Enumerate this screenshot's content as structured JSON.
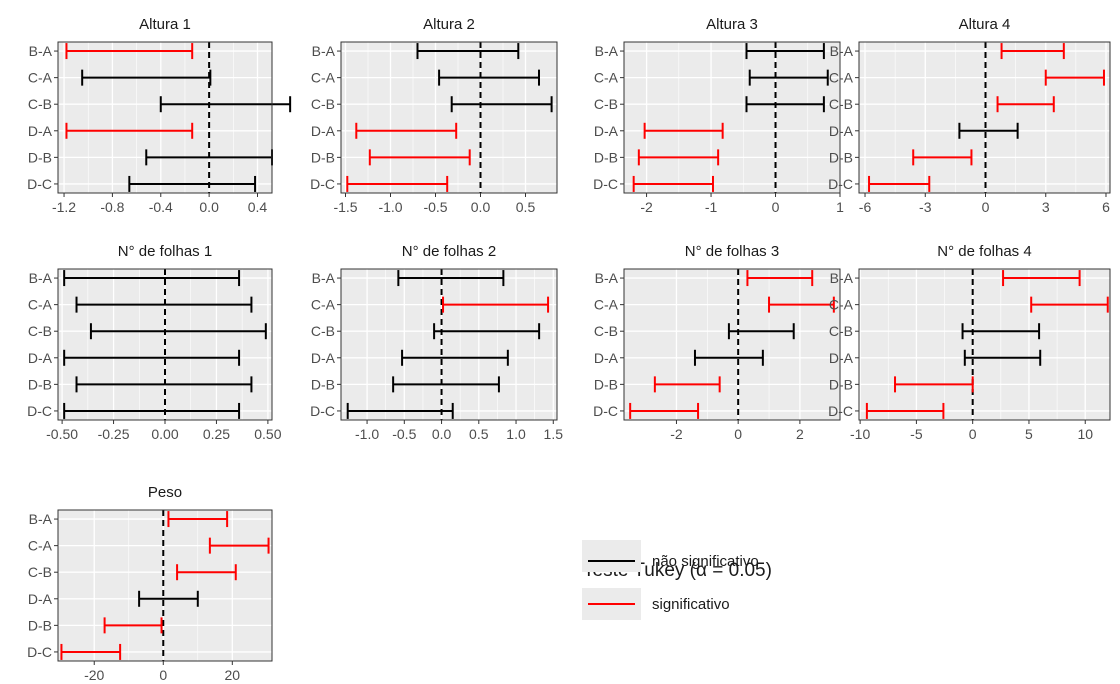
{
  "colors": {
    "significant": "#ff0000",
    "not_significant": "#000000",
    "panel_background": "#ebebeb",
    "grid": "#ffffff",
    "zero_line": "#000000"
  },
  "legend": {
    "title": "Teste Tukey (α = 0.05)",
    "items": [
      {
        "label": "não significativo",
        "color": "#000000"
      },
      {
        "label": "significativo",
        "color": "#ff0000"
      }
    ],
    "placement": "bottom-right"
  },
  "chart_data": [
    {
      "type": "interval",
      "title": "Altura 1",
      "categories": [
        "B-A",
        "C-A",
        "C-B",
        "D-A",
        "D-B",
        "D-C"
      ],
      "xlim": [
        -1.25,
        0.52
      ],
      "xticks": [
        -1.2,
        -0.8,
        -0.4,
        0.0,
        0.4
      ],
      "tick_labels": [
        "-1.2",
        "-0.8",
        "-0.4",
        "0.0",
        "0.4"
      ],
      "intervals": [
        {
          "comparison": "B-A",
          "lower": -1.18,
          "upper": -0.14,
          "significant": true
        },
        {
          "comparison": "C-A",
          "lower": -1.05,
          "upper": 0.01,
          "significant": false
        },
        {
          "comparison": "C-B",
          "lower": -0.4,
          "upper": 0.67,
          "significant": false
        },
        {
          "comparison": "D-A",
          "lower": -1.18,
          "upper": -0.14,
          "significant": true
        },
        {
          "comparison": "D-B",
          "lower": -0.52,
          "upper": 0.52,
          "significant": false
        },
        {
          "comparison": "D-C",
          "lower": -0.66,
          "upper": 0.38,
          "significant": false
        }
      ]
    },
    {
      "type": "interval",
      "title": "Altura 2",
      "categories": [
        "B-A",
        "C-A",
        "C-B",
        "D-A",
        "D-B",
        "D-C"
      ],
      "xlim": [
        -1.55,
        0.85
      ],
      "xticks": [
        -1.5,
        -1.0,
        -0.5,
        0.0,
        0.5
      ],
      "tick_labels": [
        "-1.5",
        "-1.0",
        "-0.5",
        "0.0",
        "0.5"
      ],
      "intervals": [
        {
          "comparison": "B-A",
          "lower": -0.7,
          "upper": 0.42,
          "significant": false
        },
        {
          "comparison": "C-A",
          "lower": -0.46,
          "upper": 0.65,
          "significant": false
        },
        {
          "comparison": "C-B",
          "lower": -0.32,
          "upper": 0.79,
          "significant": false
        },
        {
          "comparison": "D-A",
          "lower": -1.38,
          "upper": -0.27,
          "significant": true
        },
        {
          "comparison": "D-B",
          "lower": -1.23,
          "upper": -0.12,
          "significant": true
        },
        {
          "comparison": "D-C",
          "lower": -1.48,
          "upper": -0.37,
          "significant": true
        }
      ]
    },
    {
      "type": "interval",
      "title": "Altura 3",
      "categories": [
        "B-A",
        "C-A",
        "C-B",
        "D-A",
        "D-B",
        "D-C"
      ],
      "xlim": [
        -2.35,
        1.0
      ],
      "xticks": [
        -2,
        -1,
        0,
        1
      ],
      "tick_labels": [
        "-2",
        "-1",
        "0",
        "1"
      ],
      "intervals": [
        {
          "comparison": "B-A",
          "lower": -0.45,
          "upper": 0.75,
          "significant": false
        },
        {
          "comparison": "C-A",
          "lower": -0.4,
          "upper": 0.81,
          "significant": false
        },
        {
          "comparison": "C-B",
          "lower": -0.45,
          "upper": 0.75,
          "significant": false
        },
        {
          "comparison": "D-A",
          "lower": -2.03,
          "upper": -0.82,
          "significant": true
        },
        {
          "comparison": "D-B",
          "lower": -2.12,
          "upper": -0.89,
          "significant": true
        },
        {
          "comparison": "D-C",
          "lower": -2.2,
          "upper": -0.97,
          "significant": true
        }
      ]
    },
    {
      "type": "interval",
      "title": "Altura 4",
      "categories": [
        "B-A",
        "C-A",
        "C-B",
        "D-A",
        "D-B",
        "D-C"
      ],
      "xlim": [
        -6.3,
        6.2
      ],
      "xticks": [
        -6,
        -3,
        0,
        3,
        6
      ],
      "tick_labels": [
        "-6",
        "-3",
        "0",
        "3",
        "6"
      ],
      "intervals": [
        {
          "comparison": "B-A",
          "lower": 0.8,
          "upper": 3.9,
          "significant": true
        },
        {
          "comparison": "C-A",
          "lower": 3.0,
          "upper": 5.9,
          "significant": true
        },
        {
          "comparison": "C-B",
          "lower": 0.6,
          "upper": 3.4,
          "significant": true
        },
        {
          "comparison": "D-A",
          "lower": -1.3,
          "upper": 1.6,
          "significant": false
        },
        {
          "comparison": "D-B",
          "lower": -3.6,
          "upper": -0.7,
          "significant": true
        },
        {
          "comparison": "D-C",
          "lower": -5.8,
          "upper": -2.8,
          "significant": true
        }
      ]
    },
    {
      "type": "interval",
      "title": "N° de folhas 1",
      "categories": [
        "B-A",
        "C-A",
        "C-B",
        "D-A",
        "D-B",
        "D-C"
      ],
      "xlim": [
        -0.52,
        0.52
      ],
      "xticks": [
        -0.5,
        -0.25,
        0.0,
        0.25,
        0.5
      ],
      "tick_labels": [
        "-0.50",
        "-0.25",
        "0.00",
        "0.25",
        "0.50"
      ],
      "intervals": [
        {
          "comparison": "B-A",
          "lower": -0.49,
          "upper": 0.36,
          "significant": false
        },
        {
          "comparison": "C-A",
          "lower": -0.43,
          "upper": 0.42,
          "significant": false
        },
        {
          "comparison": "C-B",
          "lower": -0.36,
          "upper": 0.49,
          "significant": false
        },
        {
          "comparison": "D-A",
          "lower": -0.49,
          "upper": 0.36,
          "significant": false
        },
        {
          "comparison": "D-B",
          "lower": -0.43,
          "upper": 0.42,
          "significant": false
        },
        {
          "comparison": "D-C",
          "lower": -0.49,
          "upper": 0.36,
          "significant": false
        }
      ]
    },
    {
      "type": "interval",
      "title": "N° de folhas 2",
      "categories": [
        "B-A",
        "C-A",
        "C-B",
        "D-A",
        "D-B",
        "D-C"
      ],
      "xlim": [
        -1.35,
        1.55
      ],
      "xticks": [
        -1.0,
        -0.5,
        0.0,
        0.5,
        1.0,
        1.5
      ],
      "tick_labels": [
        "-1.0",
        "-0.5",
        "0.0",
        "0.5",
        "1.0",
        "1.5"
      ],
      "intervals": [
        {
          "comparison": "B-A",
          "lower": -0.58,
          "upper": 0.83,
          "significant": false
        },
        {
          "comparison": "C-A",
          "lower": 0.02,
          "upper": 1.43,
          "significant": true
        },
        {
          "comparison": "C-B",
          "lower": -0.1,
          "upper": 1.31,
          "significant": false
        },
        {
          "comparison": "D-A",
          "lower": -0.53,
          "upper": 0.89,
          "significant": false
        },
        {
          "comparison": "D-B",
          "lower": -0.65,
          "upper": 0.77,
          "significant": false
        },
        {
          "comparison": "D-C",
          "lower": -1.26,
          "upper": 0.15,
          "significant": false
        }
      ]
    },
    {
      "type": "interval",
      "title": "N° de folhas 3",
      "categories": [
        "B-A",
        "C-A",
        "C-B",
        "D-A",
        "D-B",
        "D-C"
      ],
      "xlim": [
        -3.7,
        3.3
      ],
      "xticks": [
        -2,
        0,
        2
      ],
      "tick_labels": [
        "-2",
        "0",
        "2"
      ],
      "intervals": [
        {
          "comparison": "B-A",
          "lower": 0.3,
          "upper": 2.4,
          "significant": true
        },
        {
          "comparison": "C-A",
          "lower": 1.0,
          "upper": 3.1,
          "significant": true
        },
        {
          "comparison": "C-B",
          "lower": -0.3,
          "upper": 1.8,
          "significant": false
        },
        {
          "comparison": "D-A",
          "lower": -1.4,
          "upper": 0.8,
          "significant": false
        },
        {
          "comparison": "D-B",
          "lower": -2.7,
          "upper": -0.6,
          "significant": true
        },
        {
          "comparison": "D-C",
          "lower": -3.5,
          "upper": -1.3,
          "significant": true
        }
      ]
    },
    {
      "type": "interval",
      "title": "N° de folhas 4",
      "categories": [
        "B-A",
        "C-A",
        "C-B",
        "D-A",
        "D-B",
        "D-C"
      ],
      "xlim": [
        -10.1,
        12.2
      ],
      "xticks": [
        -10,
        -5,
        0,
        5,
        10
      ],
      "tick_labels": [
        "-10",
        "-5",
        "0",
        "5",
        "10"
      ],
      "intervals": [
        {
          "comparison": "B-A",
          "lower": 2.7,
          "upper": 9.5,
          "significant": true
        },
        {
          "comparison": "C-A",
          "lower": 5.2,
          "upper": 12.0,
          "significant": true
        },
        {
          "comparison": "C-B",
          "lower": -0.9,
          "upper": 5.9,
          "significant": false
        },
        {
          "comparison": "D-A",
          "lower": -0.7,
          "upper": 6.0,
          "significant": false
        },
        {
          "comparison": "D-B",
          "lower": -6.9,
          "upper": 0.0,
          "significant": true
        },
        {
          "comparison": "D-C",
          "lower": -9.4,
          "upper": -2.6,
          "significant": true
        }
      ]
    },
    {
      "type": "interval",
      "title": "Peso",
      "categories": [
        "B-A",
        "C-A",
        "C-B",
        "D-A",
        "D-B",
        "D-C"
      ],
      "xlim": [
        -30.5,
        31.5
      ],
      "xticks": [
        -20,
        0,
        20
      ],
      "tick_labels": [
        "-20",
        "0",
        "20"
      ],
      "intervals": [
        {
          "comparison": "B-A",
          "lower": 1.5,
          "upper": 18.5,
          "significant": true
        },
        {
          "comparison": "C-A",
          "lower": 13.5,
          "upper": 30.5,
          "significant": true
        },
        {
          "comparison": "C-B",
          "lower": 4.0,
          "upper": 21.0,
          "significant": true
        },
        {
          "comparison": "D-A",
          "lower": -7.0,
          "upper": 10.0,
          "significant": false
        },
        {
          "comparison": "D-B",
          "lower": -17.0,
          "upper": -0.5,
          "significant": true
        },
        {
          "comparison": "D-C",
          "lower": -29.5,
          "upper": -12.5,
          "significant": true
        }
      ]
    }
  ]
}
